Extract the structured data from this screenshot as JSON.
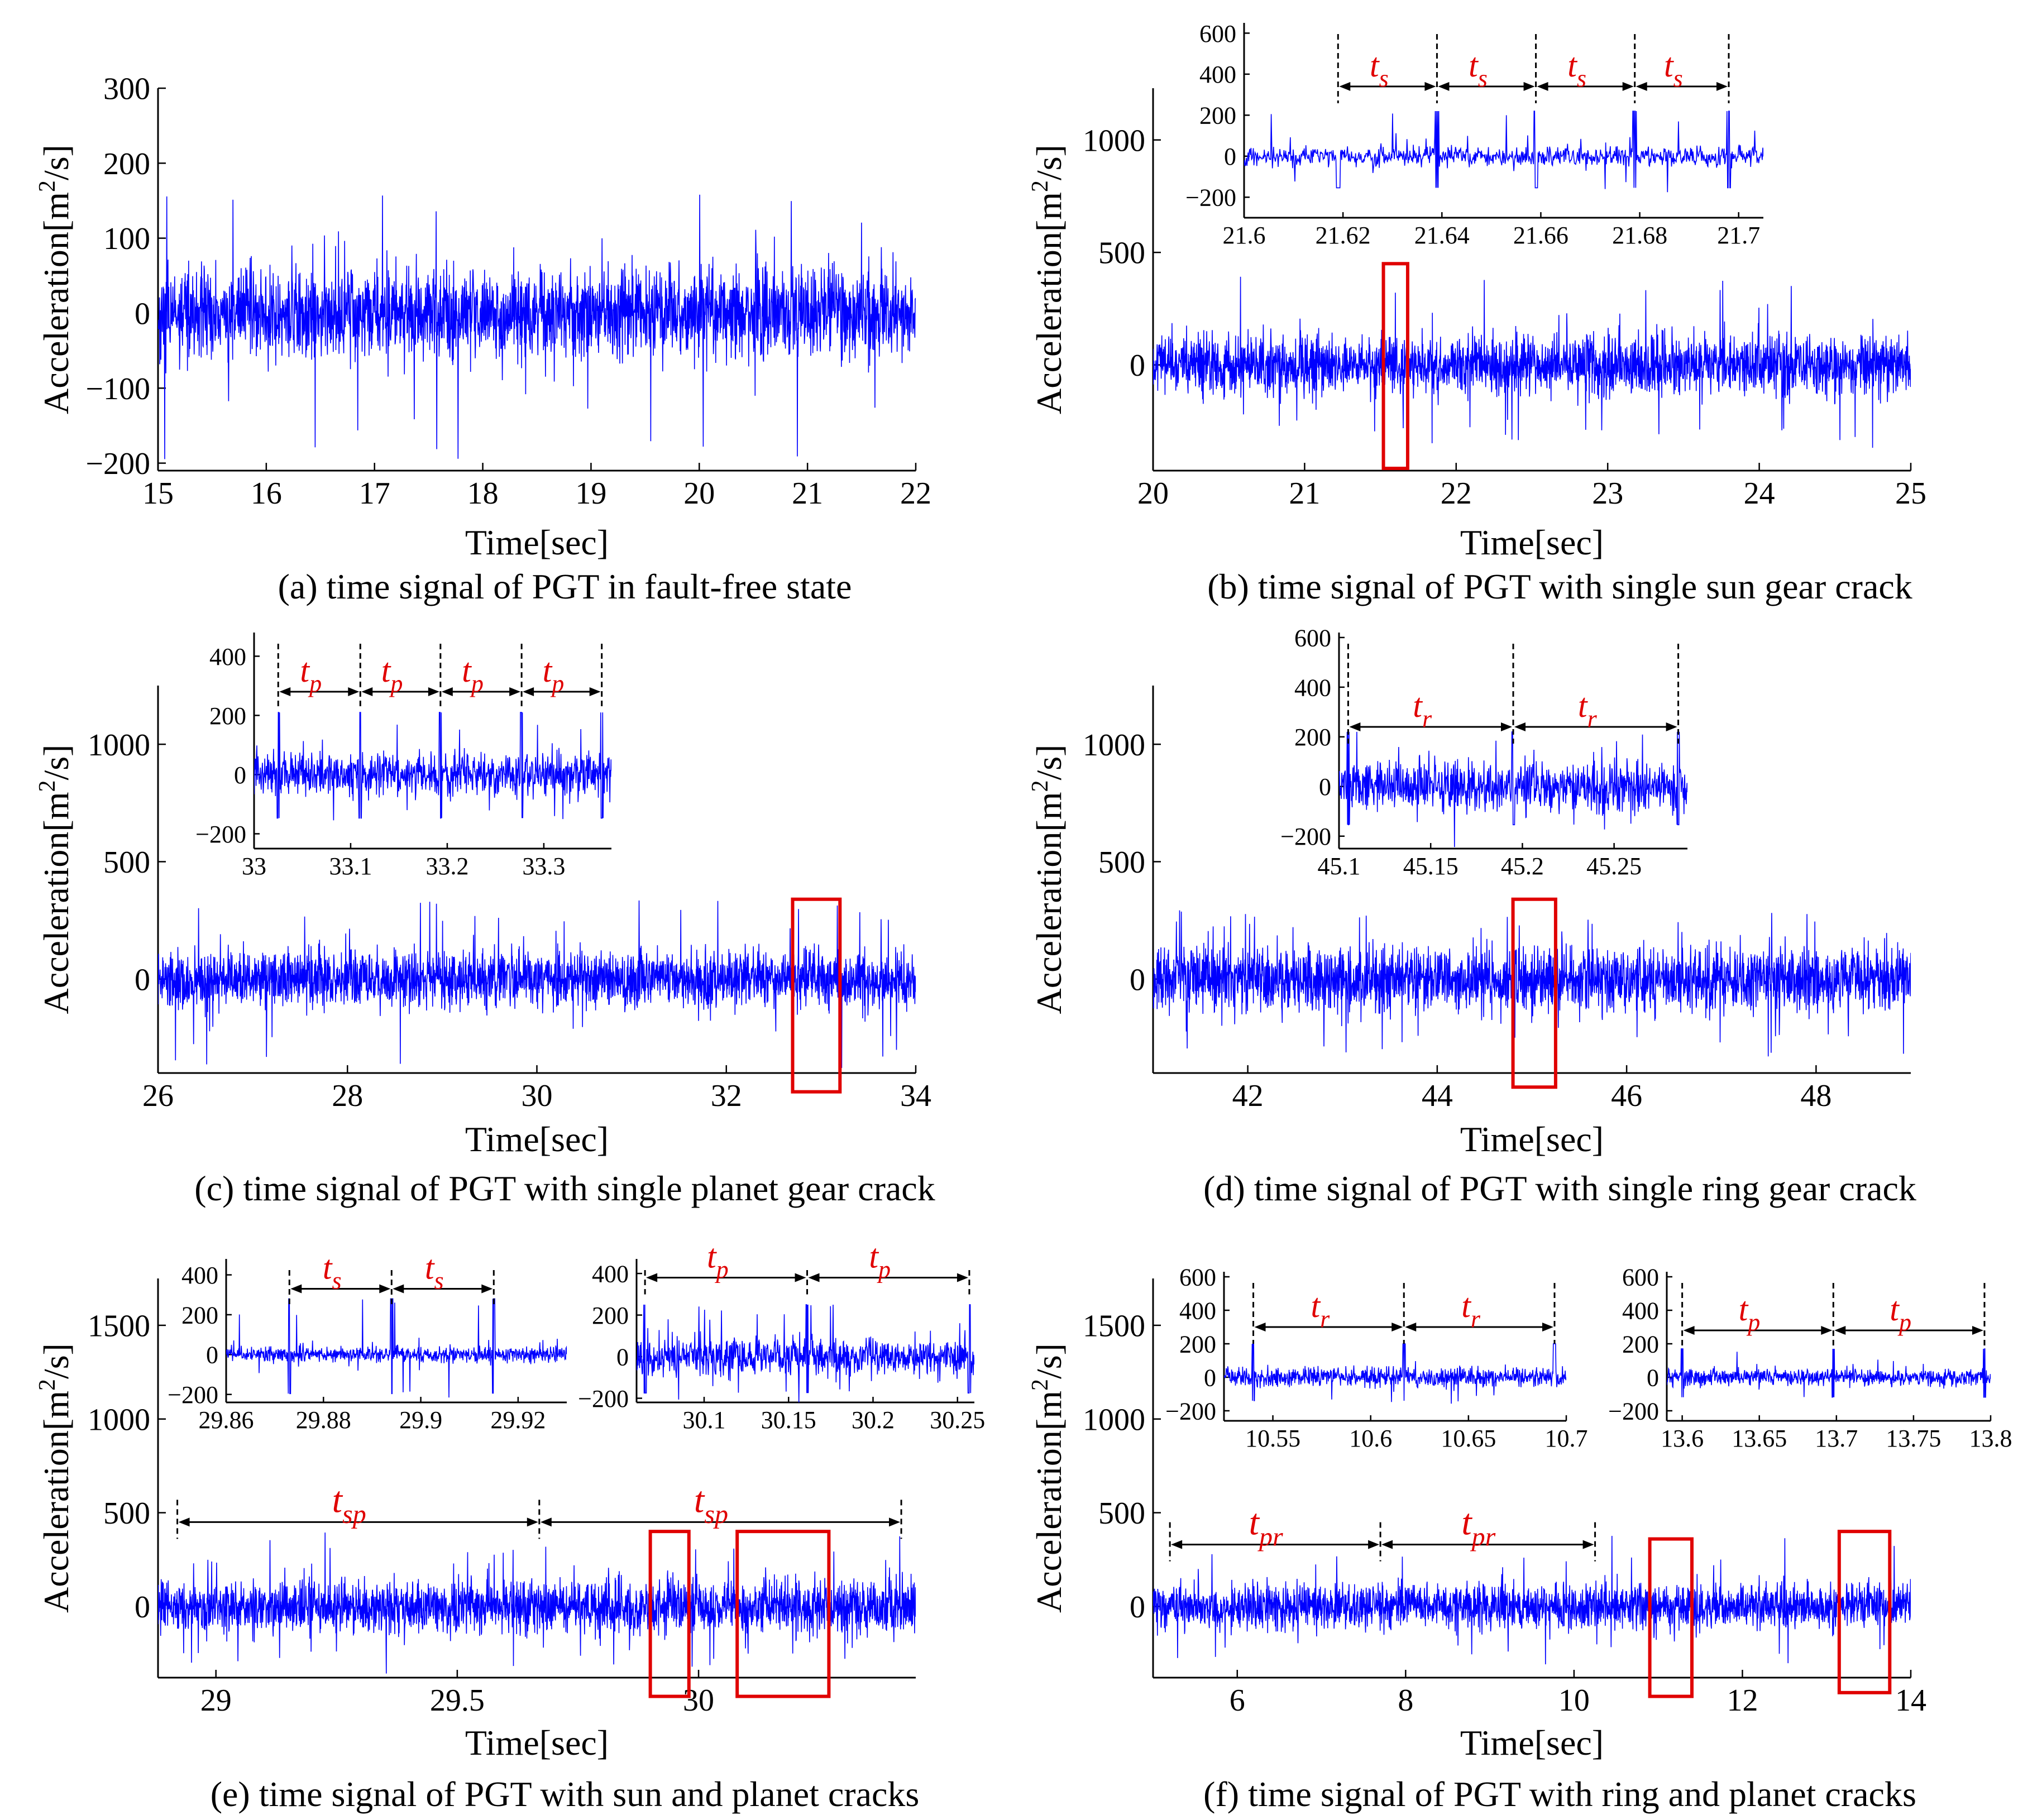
{
  "figure": {
    "type": "multi-panel time-domain vibration signals"
  },
  "chart_data": [
    {
      "id": "a",
      "type": "line",
      "caption": "(a) time signal of PGT in fault-free state",
      "xlabel": "Time[sec]",
      "ylabel": "Acceleration[m²/s]",
      "ylabel_main": "Acceleration[m",
      "ylabel_sup": "2",
      "ylabel_tail": "/s]",
      "xlim": [
        15,
        22
      ],
      "ylim": [
        -210,
        300
      ],
      "xticks": [
        15,
        16,
        17,
        18,
        19,
        20,
        21,
        22
      ],
      "yticks": [
        -200,
        -100,
        0,
        100,
        200,
        300
      ],
      "ytick_labels": [
        "−200",
        "−100",
        "0",
        "100",
        "200",
        "300"
      ],
      "signal": {
        "amplitude": 55,
        "spike_max": 190,
        "spike_min": -200
      },
      "highlight_boxes": [],
      "periods": [],
      "insets": []
    },
    {
      "id": "b",
      "type": "line",
      "caption": "(b) time signal of PGT with single sun gear crack",
      "xlabel": "Time[sec]",
      "ylabel": "Acceleration[m²/s]",
      "ylabel_main": "Acceleration[m",
      "ylabel_sup": "2",
      "ylabel_tail": "/s]",
      "xlim": [
        20,
        25
      ],
      "ylim": [
        -470,
        1230
      ],
      "xticks": [
        20,
        21,
        22,
        23,
        24,
        25
      ],
      "yticks": [
        0,
        500,
        1000
      ],
      "ytick_labels": [
        "0",
        "500",
        "1000"
      ],
      "signal": {
        "amplitude": 120,
        "spike_max": 400,
        "spike_min": -380
      },
      "highlight_boxes": [
        {
          "x0": 21.52,
          "x1": 21.68,
          "y0": -460,
          "y1": 450
        }
      ],
      "periods": [],
      "insets": [
        {
          "xlim": [
            21.6,
            21.705
          ],
          "ylim": [
            -300,
            650
          ],
          "xticks": [
            21.6,
            21.62,
            21.64,
            21.66,
            21.68,
            21.7
          ],
          "yticks": [
            -200,
            0,
            200,
            400,
            600
          ],
          "ytick_labels": [
            "−200",
            "0",
            "200",
            "400",
            "600"
          ],
          "amplitude": 45,
          "spike_max": 220,
          "period": {
            "label": "t",
            "sub": "s",
            "marks": [
              21.619,
              21.639,
              21.659,
              21.679,
              21.698
            ],
            "y": 340
          }
        }
      ]
    },
    {
      "id": "c",
      "type": "line",
      "caption": "(c) time signal of PGT with single planet gear crack",
      "xlabel": "Time[sec]",
      "ylabel": "Acceleration[m²/s]",
      "ylabel_main": "Acceleration[m",
      "ylabel_sup": "2",
      "ylabel_tail": "/s]",
      "xlim": [
        26,
        34
      ],
      "ylim": [
        -400,
        1250
      ],
      "xticks": [
        26,
        28,
        30,
        32,
        34
      ],
      "yticks": [
        0,
        500,
        1000
      ],
      "ytick_labels": [
        "0",
        "500",
        "1000"
      ],
      "signal": {
        "amplitude": 110,
        "spike_max": 350,
        "spike_min": -380
      },
      "highlight_boxes": [
        {
          "x0": 32.7,
          "x1": 33.2,
          "y0": -480,
          "y1": 340
        }
      ],
      "periods": [],
      "insets": [
        {
          "xlim": [
            33.0,
            33.37
          ],
          "ylim": [
            -250,
            480
          ],
          "xticks": [
            33.0,
            33.1,
            33.2,
            33.3
          ],
          "xtick_labels": [
            "33",
            "33.1",
            "33.2",
            "33.3"
          ],
          "yticks": [
            -200,
            0,
            200,
            400
          ],
          "ytick_labels": [
            "−200",
            "0",
            "200",
            "400"
          ],
          "amplitude": 70,
          "spike_max": 210,
          "period": {
            "label": "t",
            "sub": "p",
            "marks": [
              33.025,
              33.11,
              33.193,
              33.277,
              33.36
            ],
            "y": 280
          }
        }
      ]
    },
    {
      "id": "d",
      "type": "line",
      "caption": "(d) time signal of PGT with single ring gear crack",
      "xlabel": "Time[sec]",
      "ylabel": "Acceleration[m²/s]",
      "ylabel_main": "Acceleration[m",
      "ylabel_sup": "2",
      "ylabel_tail": "/s]",
      "xlim": [
        41,
        49
      ],
      "ylim": [
        -400,
        1250
      ],
      "xticks": [
        42,
        44,
        46,
        48
      ],
      "yticks": [
        0,
        500,
        1000
      ],
      "ytick_labels": [
        "0",
        "500",
        "1000"
      ],
      "signal": {
        "amplitude": 130,
        "spike_max": 320,
        "spike_min": -320
      },
      "highlight_boxes": [
        {
          "x0": 44.8,
          "x1": 45.25,
          "y0": -460,
          "y1": 340
        }
      ],
      "periods": [],
      "insets": [
        {
          "xlim": [
            45.1,
            45.29
          ],
          "ylim": [
            -250,
            620
          ],
          "xticks": [
            45.1,
            45.15,
            45.2,
            45.25
          ],
          "yticks": [
            -200,
            0,
            200,
            400,
            600
          ],
          "ytick_labels": [
            "−200",
            "0",
            "200",
            "400",
            "600"
          ],
          "amplitude": 90,
          "spike_max": 220,
          "period": {
            "label": "t",
            "sub": "r",
            "marks": [
              45.105,
              45.195,
              45.285
            ],
            "y": 240
          }
        }
      ]
    },
    {
      "id": "e",
      "type": "line",
      "caption": "(e) time signal of PGT with sun and planet cracks",
      "xlabel": "Time[sec]",
      "ylabel": "Acceleration[m²/s]",
      "ylabel_main": "Acceleration[m",
      "ylabel_sup": "2",
      "ylabel_tail": "/s]",
      "xlim": [
        28.88,
        30.45
      ],
      "ylim": [
        -380,
        1750
      ],
      "xticks": [
        29,
        29.5,
        30
      ],
      "yticks": [
        0,
        500,
        1000,
        1500
      ],
      "ytick_labels": [
        "0",
        "500",
        "1000",
        "1500"
      ],
      "signal": {
        "amplitude": 130,
        "spike_max": 320,
        "spike_min": -330
      },
      "highlight_boxes": [
        {
          "x0": 29.9,
          "x1": 29.98,
          "y0": -480,
          "y1": 400
        },
        {
          "x0": 30.08,
          "x1": 30.27,
          "y0": -480,
          "y1": 400
        }
      ],
      "periods": [
        {
          "label": "t",
          "sub": "sp",
          "marks": [
            28.92,
            29.67,
            30.42
          ],
          "y": 450
        }
      ],
      "insets": [
        {
          "xlim": [
            29.86,
            29.93
          ],
          "ylim": [
            -240,
            480
          ],
          "xticks": [
            29.86,
            29.88,
            29.9,
            29.92
          ],
          "yticks": [
            -200,
            0,
            200,
            400
          ],
          "ytick_labels": [
            "−200",
            "0",
            "200",
            "400"
          ],
          "amplitude": 35,
          "spike_max": 280,
          "period": {
            "label": "t",
            "sub": "s",
            "marks": [
              29.873,
              29.894,
              29.915
            ],
            "y": 330
          }
        },
        {
          "xlim": [
            30.06,
            30.26
          ],
          "ylim": [
            -220,
            470
          ],
          "xticks": [
            30.1,
            30.15,
            30.2,
            30.25
          ],
          "yticks": [
            -200,
            0,
            200,
            400
          ],
          "ytick_labels": [
            "−200",
            "0",
            "200",
            "400"
          ],
          "amplitude": 85,
          "spike_max": 250,
          "period": {
            "label": "t",
            "sub": "p",
            "marks": [
              30.065,
              30.161,
              30.257
            ],
            "y": 380
          }
        }
      ]
    },
    {
      "id": "f",
      "type": "line",
      "caption": "(f) time signal of PGT with ring and planet cracks",
      "xlabel": "Time[sec]",
      "ylabel": "Acceleration[m²/s]",
      "ylabel_main": "Acceleration[m",
      "ylabel_sup": "2",
      "ylabel_tail": "/s]",
      "xlim": [
        5,
        14
      ],
      "ylim": [
        -380,
        1750
      ],
      "xticks": [
        6,
        8,
        10,
        12,
        14
      ],
      "yticks": [
        0,
        500,
        1000,
        1500
      ],
      "ytick_labels": [
        "0",
        "500",
        "1000",
        "1500"
      ],
      "signal": {
        "amplitude": 110,
        "spike_max": 280,
        "spike_min": -280
      },
      "highlight_boxes": [
        {
          "x0": 10.9,
          "x1": 11.4,
          "y0": -480,
          "y1": 360
        },
        {
          "x0": 13.15,
          "x1": 13.75,
          "y0": -460,
          "y1": 400
        }
      ],
      "periods": [
        {
          "label": "t",
          "sub": "pr",
          "marks": [
            5.2,
            7.7,
            10.25
          ],
          "y": 330
        }
      ],
      "insets": [
        {
          "xlim": [
            10.525,
            10.7
          ],
          "ylim": [
            -260,
            630
          ],
          "xticks": [
            10.55,
            10.6,
            10.65,
            10.7
          ],
          "yticks": [
            -200,
            0,
            200,
            400,
            600
          ],
          "ytick_labels": [
            "−200",
            "0",
            "200",
            "400",
            "600"
          ],
          "amplitude": 55,
          "spike_max": 200,
          "period": {
            "label": "t",
            "sub": "r",
            "marks": [
              10.54,
              10.617,
              10.694
            ],
            "y": 300
          }
        },
        {
          "xlim": [
            13.59,
            13.8
          ],
          "ylim": [
            -260,
            630
          ],
          "xticks": [
            13.6,
            13.65,
            13.7,
            13.75,
            13.8
          ],
          "yticks": [
            -200,
            0,
            200,
            400,
            600
          ],
          "ytick_labels": [
            "−200",
            "0",
            "200",
            "400",
            "600"
          ],
          "amplitude": 45,
          "spike_max": 170,
          "period": {
            "label": "t",
            "sub": "p",
            "marks": [
              13.6,
              13.698,
              13.796
            ],
            "y": 280
          }
        }
      ]
    }
  ]
}
